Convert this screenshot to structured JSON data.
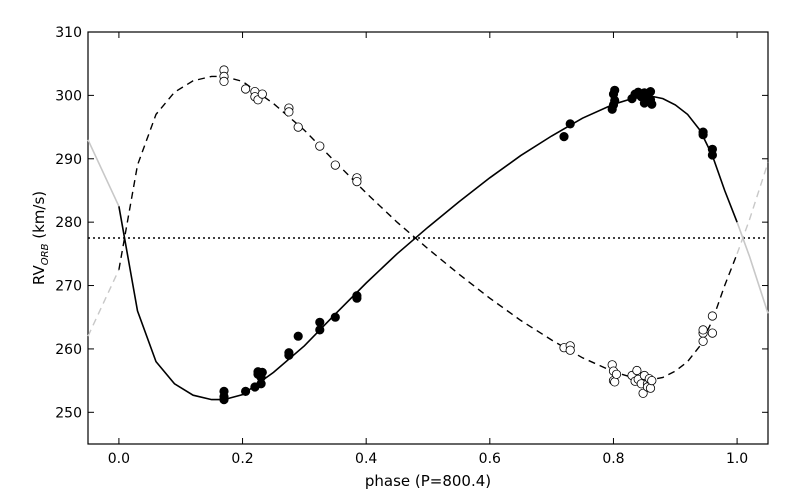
{
  "chart_data": {
    "type": "scatter",
    "title": "",
    "xlabel": "phase (P=800.4)",
    "ylabel_main": "RV",
    "ylabel_sub": "ORB",
    "ylabel_suffix": " (km/s)",
    "xlim": [
      -0.05,
      1.05
    ],
    "ylim": [
      245,
      310
    ],
    "xticks": [
      0.0,
      0.2,
      0.4,
      0.6,
      0.8,
      1.0
    ],
    "xtick_labels": [
      "0.0",
      "0.2",
      "0.4",
      "0.6",
      "0.8",
      "1.0"
    ],
    "yticks": [
      250,
      260,
      270,
      280,
      290,
      300,
      310
    ],
    "ytick_labels": [
      "250",
      "260",
      "270",
      "280",
      "290",
      "300",
      "310"
    ],
    "systemic_velocity": 277.5,
    "legend": "none",
    "series": [
      {
        "name": "primary",
        "marker": "filled-circle",
        "curve": "solid",
        "points": [
          [
            0.17,
            252.0
          ],
          [
            0.17,
            252.5
          ],
          [
            0.17,
            253.3
          ],
          [
            0.205,
            253.3
          ],
          [
            0.22,
            254.0
          ],
          [
            0.225,
            256.0
          ],
          [
            0.225,
            256.4
          ],
          [
            0.23,
            254.5
          ],
          [
            0.23,
            255.5
          ],
          [
            0.232,
            256.3
          ],
          [
            0.275,
            259.0
          ],
          [
            0.275,
            259.4
          ],
          [
            0.29,
            262.0
          ],
          [
            0.325,
            263.0
          ],
          [
            0.325,
            264.2
          ],
          [
            0.35,
            265.0
          ],
          [
            0.385,
            268.0
          ],
          [
            0.385,
            268.4
          ],
          [
            0.72,
            293.5
          ],
          [
            0.73,
            295.5
          ],
          [
            0.798,
            297.8
          ],
          [
            0.8,
            298.5
          ],
          [
            0.802,
            299.2
          ],
          [
            0.8,
            300.2
          ],
          [
            0.802,
            300.8
          ],
          [
            0.83,
            299.5
          ],
          [
            0.835,
            300.2
          ],
          [
            0.84,
            300.5
          ],
          [
            0.845,
            299.8
          ],
          [
            0.85,
            298.8
          ],
          [
            0.85,
            300.4
          ],
          [
            0.855,
            299.7
          ],
          [
            0.86,
            300.6
          ],
          [
            0.86,
            299.3
          ],
          [
            0.862,
            298.6
          ],
          [
            0.945,
            293.8
          ],
          [
            0.945,
            294.2
          ],
          [
            0.96,
            291.5
          ],
          [
            0.96,
            290.6
          ]
        ]
      },
      {
        "name": "secondary",
        "marker": "open-circle",
        "curve": "dashed",
        "points": [
          [
            0.17,
            304.0
          ],
          [
            0.17,
            303.0
          ],
          [
            0.17,
            302.2
          ],
          [
            0.205,
            301.0
          ],
          [
            0.22,
            300.6
          ],
          [
            0.22,
            299.8
          ],
          [
            0.225,
            299.3
          ],
          [
            0.232,
            300.2
          ],
          [
            0.275,
            298.0
          ],
          [
            0.275,
            297.4
          ],
          [
            0.29,
            295.0
          ],
          [
            0.325,
            292.0
          ],
          [
            0.35,
            289.0
          ],
          [
            0.385,
            287.0
          ],
          [
            0.385,
            286.4
          ],
          [
            0.72,
            260.2
          ],
          [
            0.73,
            260.5
          ],
          [
            0.73,
            259.8
          ],
          [
            0.798,
            257.5
          ],
          [
            0.8,
            256.5
          ],
          [
            0.8,
            255.0
          ],
          [
            0.802,
            254.8
          ],
          [
            0.805,
            256.0
          ],
          [
            0.83,
            255.8
          ],
          [
            0.835,
            254.9
          ],
          [
            0.838,
            256.6
          ],
          [
            0.84,
            255.2
          ],
          [
            0.845,
            254.5
          ],
          [
            0.848,
            253.0
          ],
          [
            0.85,
            255.8
          ],
          [
            0.855,
            254.5
          ],
          [
            0.855,
            254.0
          ],
          [
            0.858,
            255.3
          ],
          [
            0.86,
            253.8
          ],
          [
            0.862,
            255.0
          ],
          [
            0.945,
            262.5
          ],
          [
            0.945,
            261.2
          ],
          [
            0.945,
            263.0
          ],
          [
            0.96,
            265.2
          ],
          [
            0.96,
            262.5
          ]
        ]
      }
    ]
  }
}
